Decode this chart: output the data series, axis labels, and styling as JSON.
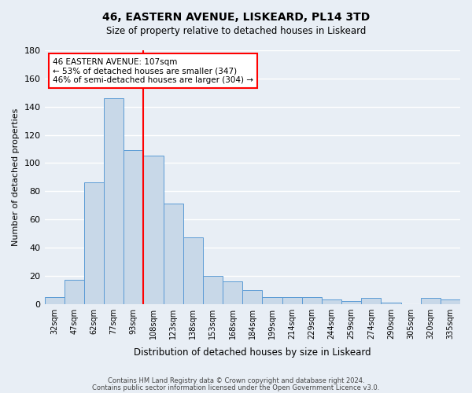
{
  "title": "46, EASTERN AVENUE, LISKEARD, PL14 3TD",
  "subtitle": "Size of property relative to detached houses in Liskeard",
  "xlabel": "Distribution of detached houses by size in Liskeard",
  "ylabel": "Number of detached properties",
  "bar_color": "#c8d8e8",
  "bar_edge_color": "#5b9bd5",
  "bg_color": "#e8eef5",
  "grid_color": "#ffffff",
  "categories": [
    "32sqm",
    "47sqm",
    "62sqm",
    "77sqm",
    "93sqm",
    "108sqm",
    "123sqm",
    "138sqm",
    "153sqm",
    "168sqm",
    "184sqm",
    "199sqm",
    "214sqm",
    "229sqm",
    "244sqm",
    "259sqm",
    "274sqm",
    "290sqm",
    "305sqm",
    "320sqm",
    "335sqm"
  ],
  "values": [
    5,
    17,
    86,
    146,
    109,
    105,
    71,
    47,
    20,
    16,
    10,
    5,
    5,
    5,
    3,
    2,
    4,
    1,
    0,
    4,
    3
  ],
  "ylim": [
    0,
    180
  ],
  "yticks": [
    0,
    20,
    40,
    60,
    80,
    100,
    120,
    140,
    160,
    180
  ],
  "property_label": "46 EASTERN AVENUE: 107sqm",
  "annotation_line1": "← 53% of detached houses are smaller (347)",
  "annotation_line2": "46% of semi-detached houses are larger (304) →",
  "vline_pos": 4.5,
  "footer1": "Contains HM Land Registry data © Crown copyright and database right 2024.",
  "footer2": "Contains public sector information licensed under the Open Government Licence v3.0."
}
